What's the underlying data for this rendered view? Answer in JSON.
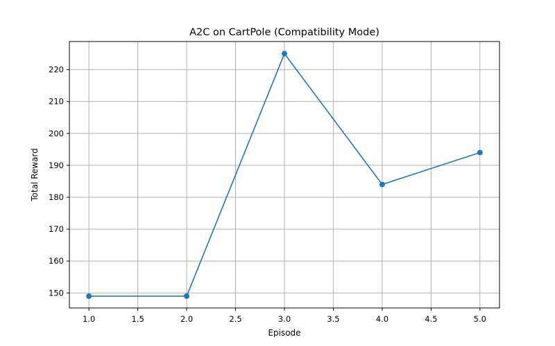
{
  "chart_data": {
    "type": "line",
    "title": "A2C on CartPole (Compatibility Mode)",
    "xlabel": "Episode",
    "ylabel": "Total Reward",
    "x": [
      1,
      2,
      3,
      4,
      5
    ],
    "series": [
      {
        "values": [
          149,
          149,
          225,
          184,
          194
        ],
        "color": "#1f77b4",
        "marker": "circle"
      }
    ],
    "xlim": [
      0.8,
      5.2
    ],
    "ylim": [
      145.3,
      228.8
    ],
    "xticks": [
      1.0,
      1.5,
      2.0,
      2.5,
      3.0,
      3.5,
      4.0,
      4.5,
      5.0
    ],
    "xtick_labels": [
      "1.0",
      "1.5",
      "2.0",
      "2.5",
      "3.0",
      "3.5",
      "4.0",
      "4.5",
      "5.0"
    ],
    "yticks": [
      150,
      160,
      170,
      180,
      190,
      200,
      210,
      220
    ],
    "ytick_labels": [
      "150",
      "160",
      "170",
      "180",
      "190",
      "200",
      "210",
      "220"
    ],
    "grid": true,
    "legend": "none"
  }
}
